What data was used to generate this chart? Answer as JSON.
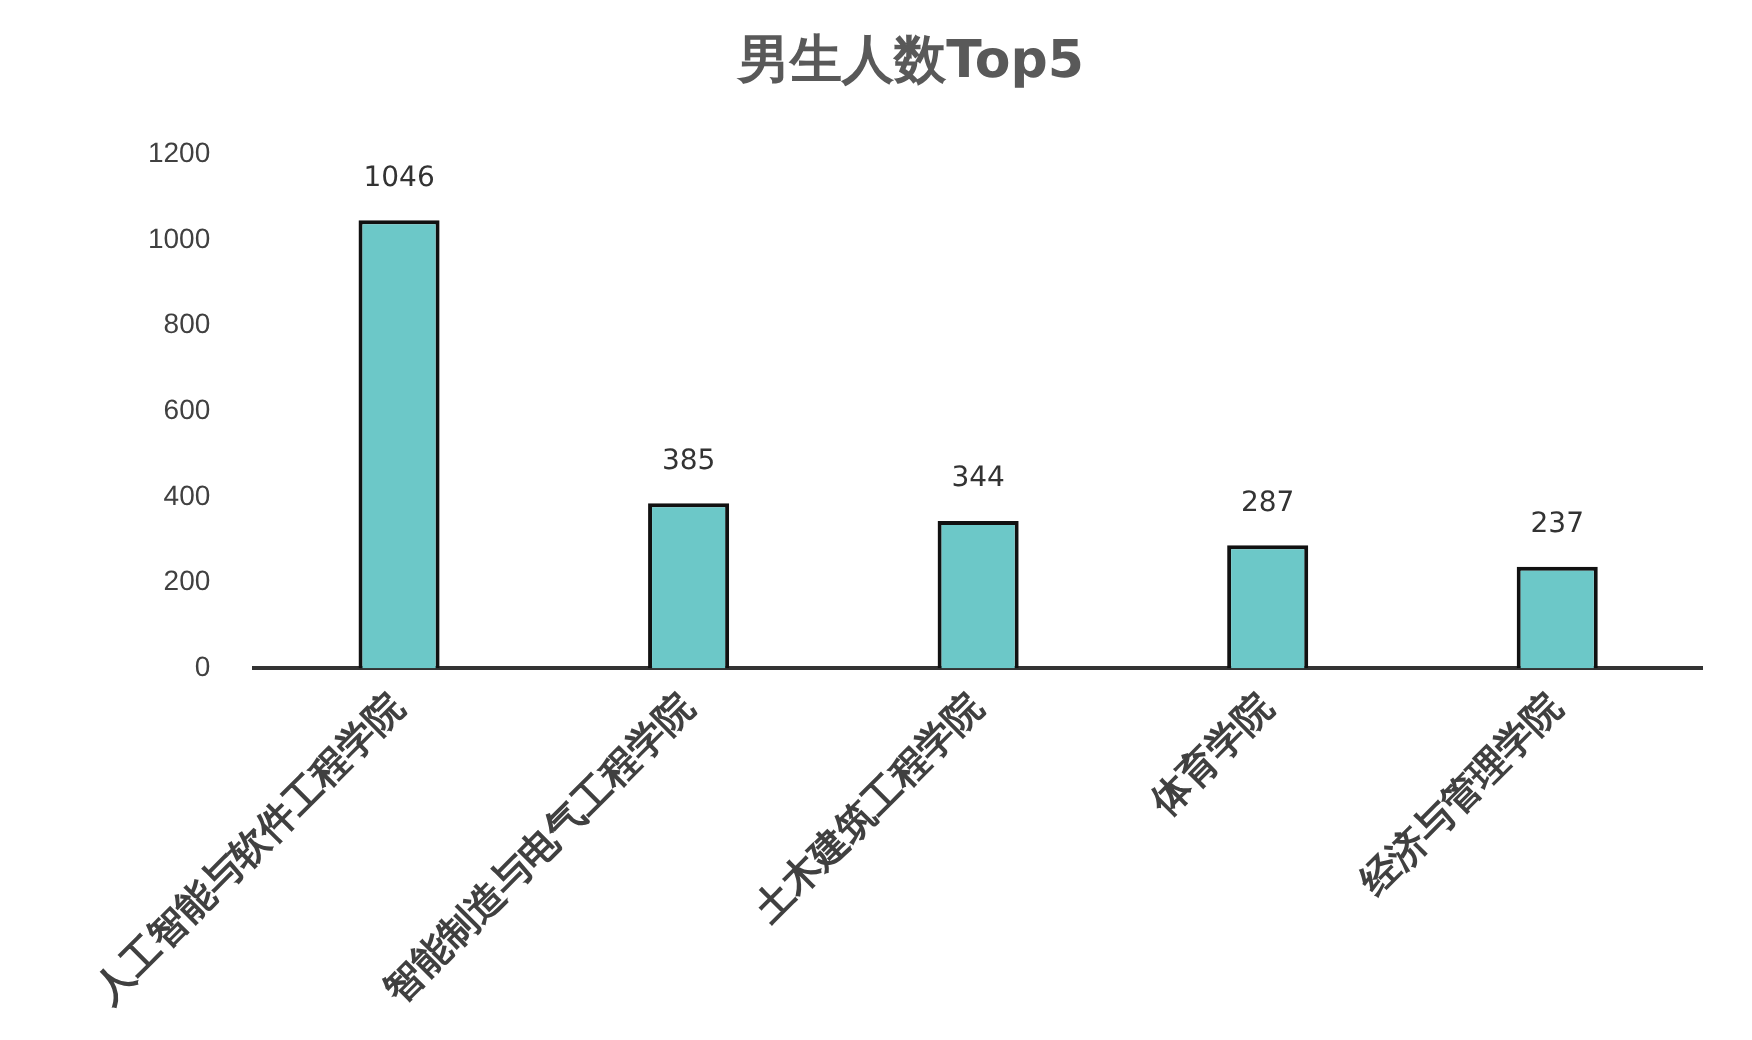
{
  "chart_data": {
    "type": "bar",
    "title": "男生人数Top5",
    "categories": [
      "人工智能与软件工程学院",
      "智能制造与电气工程学院",
      "土木建筑工程学院",
      "体育学院",
      "经济与管理学院"
    ],
    "values": [
      1046,
      385,
      344,
      287,
      237
    ],
    "color": "#6cc8c8",
    "ylim": [
      0,
      1200
    ],
    "yticks": [
      0,
      200,
      400,
      600,
      800,
      1000,
      1200
    ],
    "grid": false,
    "data_labels": true
  }
}
